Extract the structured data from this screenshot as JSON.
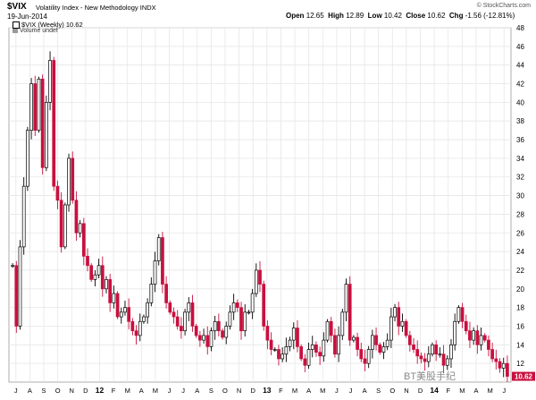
{
  "header": {
    "symbol": "$VIX",
    "name": "Volatility Index - New Methodology",
    "exchange": "INDX",
    "date": "19-Jun-2014",
    "watermark": "© StockCharts.com",
    "open_label": "Open",
    "open": "12.65",
    "high_label": "High",
    "high": "12.89",
    "low_label": "Low",
    "low": "10.42",
    "close_label": "Close",
    "close": "10.62",
    "chg_label": "Chg",
    "chg": "-1.56 (-12.81%)"
  },
  "legend": {
    "price": "$VIX (Weekly) 10.62",
    "volume": "Volume undef"
  },
  "overlay": {
    "wechat_label": "BT美股手纪"
  },
  "colors": {
    "up": "#ffffff",
    "down": "#c8103e",
    "outline": "#000000",
    "grid": "#e6e6e6",
    "last_price": "#c8103e"
  },
  "chart_data": {
    "type": "candlestick",
    "ylim": [
      10,
      48
    ],
    "yticks": [
      12,
      14,
      16,
      18,
      20,
      22,
      24,
      26,
      28,
      30,
      32,
      34,
      36,
      38,
      40,
      42,
      44,
      46,
      48
    ],
    "grid": true,
    "last_price_label": "10.62",
    "x_labels": [
      "J",
      "A",
      "S",
      "O",
      "N",
      "D",
      "12",
      "F",
      "M",
      "A",
      "M",
      "J",
      "J",
      "A",
      "S",
      "O",
      "N",
      "D",
      "13",
      "F",
      "M",
      "A",
      "M",
      "J",
      "J",
      "A",
      "S",
      "O",
      "N",
      "D",
      "14",
      "F",
      "M",
      "A",
      "M",
      "J"
    ],
    "close": [
      22.5,
      16.0,
      24.5,
      31.0,
      37.0,
      42.0,
      37.0,
      42.5,
      33.0,
      40.0,
      44.5,
      31.0,
      29.5,
      24.5,
      29.0,
      34.0,
      29.5,
      26.0,
      27.0,
      23.5,
      22.5,
      21.0,
      21.5,
      22.5,
      20.0,
      21.0,
      18.5,
      19.5,
      17.0,
      17.5,
      18.0,
      16.5,
      15.5,
      15.0,
      16.5,
      17.0,
      18.5,
      20.5,
      23.0,
      25.5,
      20.5,
      18.5,
      17.5,
      17.0,
      16.0,
      15.5,
      17.5,
      18.5,
      16.0,
      15.0,
      14.5,
      15.0,
      13.8,
      15.5,
      16.5,
      15.5,
      14.8,
      16.0,
      17.5,
      18.5,
      18.0,
      15.5,
      17.5,
      17.5,
      19.5,
      22.0,
      20.5,
      16.0,
      14.5,
      13.5,
      13.5,
      12.5,
      13.0,
      13.8,
      14.5,
      15.8,
      13.8,
      12.5,
      11.8,
      13.5,
      14.0,
      13.2,
      12.8,
      14.5,
      16.5,
      15.0,
      13.0,
      15.0,
      17.5,
      20.5,
      14.5,
      14.8,
      13.5,
      12.5,
      12.0,
      13.5,
      15.0,
      14.0,
      13.2,
      13.8,
      14.5,
      17.0,
      18.0,
      16.0,
      16.5,
      15.0,
      14.0,
      13.5,
      12.8,
      12.5,
      12.2,
      13.0,
      14.0,
      13.0,
      13.0,
      11.8,
      12.5,
      14.0,
      16.5,
      18.0,
      16.5,
      15.5,
      14.5,
      15.5,
      14.0,
      15.0,
      14.5,
      13.5,
      12.5,
      12.2,
      11.5,
      12.0,
      10.62
    ]
  }
}
